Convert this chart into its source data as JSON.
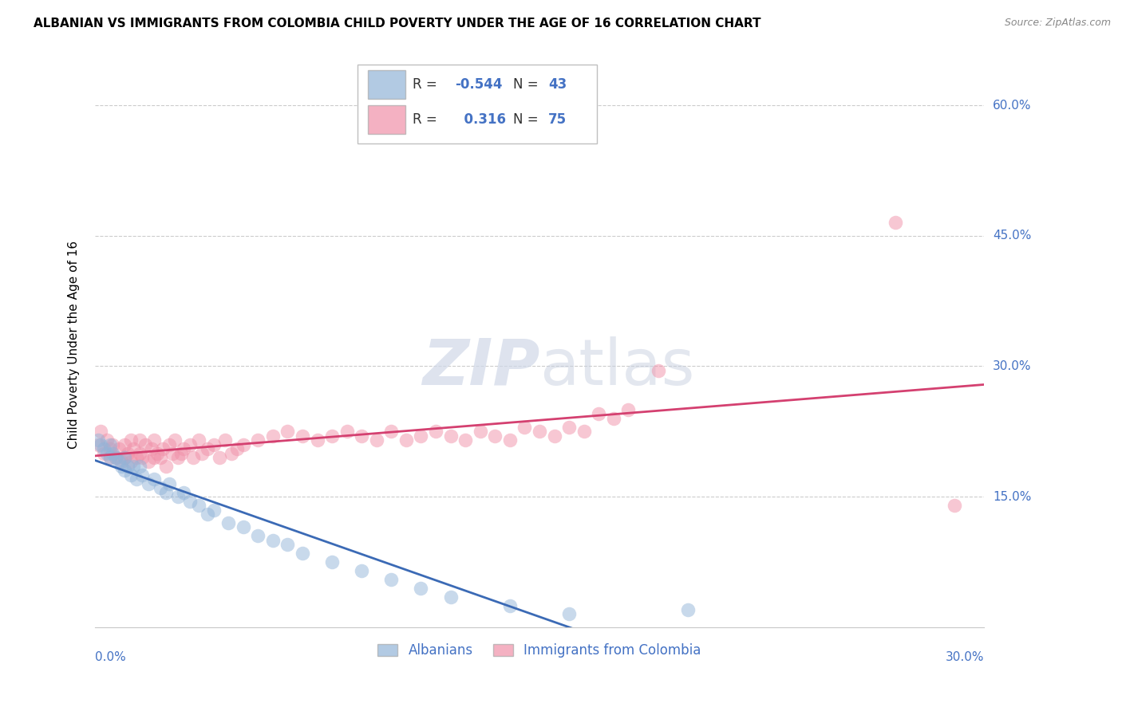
{
  "title": "ALBANIAN VS IMMIGRANTS FROM COLOMBIA CHILD POVERTY UNDER THE AGE OF 16 CORRELATION CHART",
  "source": "Source: ZipAtlas.com",
  "ylabel": "Child Poverty Under the Age of 16",
  "xlim": [
    0.0,
    0.3
  ],
  "ylim": [
    0.0,
    0.65
  ],
  "ytick_labels": [
    "15.0%",
    "30.0%",
    "45.0%",
    "60.0%"
  ],
  "ytick_values": [
    0.15,
    0.3,
    0.45,
    0.6
  ],
  "albanian_color": "#92b4d8",
  "colombia_color": "#f090a8",
  "albanian_line_color": "#3b6ab5",
  "colombia_line_color": "#d44070",
  "title_fontsize": 11,
  "source_fontsize": 9,
  "R_albanian": -0.544,
  "N_albanian": 43,
  "R_colombia": 0.316,
  "N_colombia": 75,
  "albanian_scatter_x": [
    0.001,
    0.002,
    0.003,
    0.004,
    0.005,
    0.005,
    0.006,
    0.007,
    0.008,
    0.009,
    0.01,
    0.01,
    0.011,
    0.012,
    0.013,
    0.014,
    0.015,
    0.016,
    0.018,
    0.02,
    0.022,
    0.024,
    0.025,
    0.028,
    0.03,
    0.032,
    0.035,
    0.038,
    0.04,
    0.045,
    0.05,
    0.055,
    0.06,
    0.065,
    0.07,
    0.08,
    0.09,
    0.1,
    0.11,
    0.12,
    0.14,
    0.16,
    0.2
  ],
  "albanian_scatter_y": [
    0.215,
    0.21,
    0.205,
    0.2,
    0.21,
    0.195,
    0.2,
    0.195,
    0.19,
    0.185,
    0.195,
    0.18,
    0.185,
    0.175,
    0.185,
    0.17,
    0.185,
    0.175,
    0.165,
    0.17,
    0.16,
    0.155,
    0.165,
    0.15,
    0.155,
    0.145,
    0.14,
    0.13,
    0.135,
    0.12,
    0.115,
    0.105,
    0.1,
    0.095,
    0.085,
    0.075,
    0.065,
    0.055,
    0.045,
    0.035,
    0.025,
    0.015,
    0.02
  ],
  "colombia_scatter_x": [
    0.001,
    0.002,
    0.003,
    0.004,
    0.005,
    0.005,
    0.006,
    0.007,
    0.008,
    0.009,
    0.01,
    0.01,
    0.011,
    0.012,
    0.012,
    0.013,
    0.014,
    0.015,
    0.015,
    0.016,
    0.017,
    0.018,
    0.019,
    0.02,
    0.02,
    0.021,
    0.022,
    0.023,
    0.024,
    0.025,
    0.026,
    0.027,
    0.028,
    0.029,
    0.03,
    0.032,
    0.033,
    0.035,
    0.036,
    0.038,
    0.04,
    0.042,
    0.044,
    0.046,
    0.048,
    0.05,
    0.055,
    0.06,
    0.065,
    0.07,
    0.075,
    0.08,
    0.085,
    0.09,
    0.095,
    0.1,
    0.105,
    0.11,
    0.115,
    0.12,
    0.125,
    0.13,
    0.135,
    0.14,
    0.145,
    0.15,
    0.155,
    0.16,
    0.165,
    0.17,
    0.175,
    0.18,
    0.19,
    0.27,
    0.29
  ],
  "colombia_scatter_y": [
    0.21,
    0.225,
    0.2,
    0.215,
    0.205,
    0.195,
    0.21,
    0.195,
    0.205,
    0.19,
    0.21,
    0.195,
    0.2,
    0.215,
    0.19,
    0.205,
    0.195,
    0.215,
    0.2,
    0.195,
    0.21,
    0.19,
    0.205,
    0.195,
    0.215,
    0.2,
    0.195,
    0.205,
    0.185,
    0.21,
    0.2,
    0.215,
    0.195,
    0.2,
    0.205,
    0.21,
    0.195,
    0.215,
    0.2,
    0.205,
    0.21,
    0.195,
    0.215,
    0.2,
    0.205,
    0.21,
    0.215,
    0.22,
    0.225,
    0.22,
    0.215,
    0.22,
    0.225,
    0.22,
    0.215,
    0.225,
    0.215,
    0.22,
    0.225,
    0.22,
    0.215,
    0.225,
    0.22,
    0.215,
    0.23,
    0.225,
    0.22,
    0.23,
    0.225,
    0.245,
    0.24,
    0.25,
    0.295,
    0.465,
    0.14
  ]
}
